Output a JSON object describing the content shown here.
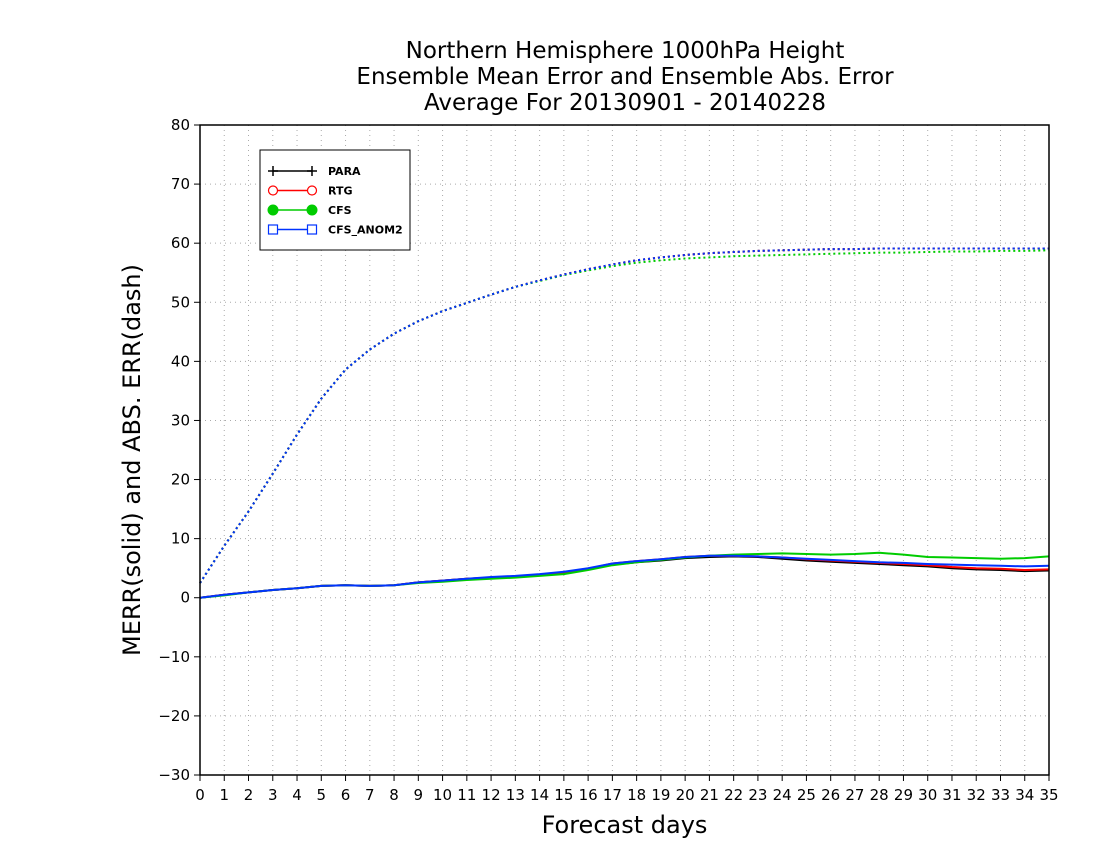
{
  "chart_data": {
    "type": "line",
    "title": [
      "Northern Hemisphere 1000hPa Height",
      "Ensemble Mean Error and Ensemble Abs. Error",
      "Average For 20130901 - 20140228"
    ],
    "xlabel": "Forecast days",
    "ylabel": "MERR(solid) and ABS. ERR(dash)",
    "xlim": [
      0,
      35
    ],
    "ylim": [
      -30,
      80
    ],
    "x_ticks": [
      0,
      1,
      2,
      3,
      4,
      5,
      6,
      7,
      8,
      9,
      10,
      11,
      12,
      13,
      14,
      15,
      16,
      17,
      18,
      19,
      20,
      21,
      22,
      23,
      24,
      25,
      26,
      27,
      28,
      29,
      30,
      31,
      32,
      33,
      34,
      35
    ],
    "y_ticks": [
      -30,
      -20,
      -10,
      0,
      10,
      20,
      30,
      40,
      50,
      60,
      70,
      80
    ],
    "grid": true,
    "legend_position": "top-left",
    "x": [
      0,
      1,
      2,
      3,
      4,
      5,
      6,
      7,
      8,
      9,
      10,
      11,
      12,
      13,
      14,
      15,
      16,
      17,
      18,
      19,
      20,
      21,
      22,
      23,
      24,
      25,
      26,
      27,
      28,
      29,
      30,
      31,
      32,
      33,
      34,
      35
    ],
    "series": [
      {
        "name": "PARA",
        "color": "#000000",
        "marker": "plus",
        "style": "solid",
        "values": [
          0.0,
          0.5,
          0.9,
          1.3,
          1.6,
          2.0,
          2.1,
          2.0,
          2.1,
          2.6,
          2.9,
          3.2,
          3.4,
          3.6,
          3.8,
          4.1,
          4.8,
          5.6,
          6.0,
          6.3,
          6.7,
          6.9,
          7.0,
          6.9,
          6.6,
          6.3,
          6.1,
          5.9,
          5.7,
          5.5,
          5.3,
          5.0,
          4.8,
          4.7,
          4.5,
          4.6
        ]
      },
      {
        "name": "RTG",
        "color": "#ff0000",
        "marker": "open-circle",
        "style": "solid",
        "values": [
          0.0,
          0.5,
          0.9,
          1.3,
          1.6,
          2.0,
          2.1,
          2.0,
          2.1,
          2.6,
          2.9,
          3.2,
          3.4,
          3.6,
          3.8,
          4.1,
          4.9,
          5.8,
          6.2,
          6.5,
          6.9,
          7.1,
          7.1,
          7.0,
          6.8,
          6.5,
          6.3,
          6.1,
          5.9,
          5.7,
          5.5,
          5.2,
          5.0,
          4.9,
          4.7,
          4.8
        ]
      },
      {
        "name": "CFS",
        "color": "#00cc00",
        "marker": "filled-circle",
        "style": "solid",
        "values": [
          0.0,
          0.4,
          0.9,
          1.3,
          1.6,
          2.0,
          2.1,
          2.0,
          2.1,
          2.5,
          2.7,
          3.0,
          3.2,
          3.4,
          3.7,
          4.0,
          4.7,
          5.5,
          6.0,
          6.4,
          6.8,
          7.1,
          7.3,
          7.4,
          7.5,
          7.4,
          7.3,
          7.4,
          7.6,
          7.3,
          6.9,
          6.8,
          6.7,
          6.6,
          6.7,
          7.0
        ]
      },
      {
        "name": "CFS_ANOM2",
        "color": "#0033ff",
        "marker": "open-square",
        "style": "solid",
        "values": [
          0.0,
          0.5,
          0.9,
          1.3,
          1.6,
          2.0,
          2.1,
          2.0,
          2.1,
          2.6,
          2.9,
          3.2,
          3.5,
          3.7,
          4.0,
          4.4,
          5.0,
          5.8,
          6.2,
          6.5,
          6.9,
          7.1,
          7.1,
          7.0,
          6.8,
          6.6,
          6.4,
          6.2,
          6.0,
          5.9,
          5.7,
          5.6,
          5.5,
          5.4,
          5.3,
          5.4
        ]
      },
      {
        "name": "PARA abs",
        "color": "#000000",
        "style": "dash",
        "values": [
          2.5,
          8.8,
          14.6,
          21.0,
          27.6,
          33.7,
          38.6,
          42.0,
          44.7,
          46.8,
          48.5,
          49.9,
          51.3,
          52.6,
          53.7,
          54.7,
          55.6,
          56.4,
          57.1,
          57.6,
          58.0,
          58.3,
          58.5,
          58.7,
          58.8,
          58.9,
          59.0,
          59.0,
          59.1,
          59.1,
          59.1,
          59.1,
          59.1,
          59.1,
          59.1,
          59.1
        ]
      },
      {
        "name": "RTG abs",
        "color": "#ff0000",
        "style": "dash",
        "values": [
          2.5,
          8.8,
          14.6,
          21.0,
          27.6,
          33.7,
          38.6,
          42.0,
          44.7,
          46.8,
          48.5,
          49.9,
          51.3,
          52.6,
          53.7,
          54.7,
          55.6,
          56.4,
          57.1,
          57.6,
          58.0,
          58.3,
          58.5,
          58.7,
          58.8,
          58.9,
          59.0,
          59.0,
          59.1,
          59.1,
          59.1,
          59.1,
          59.1,
          59.1,
          59.1,
          59.1
        ]
      },
      {
        "name": "CFS abs",
        "color": "#00cc00",
        "style": "dash",
        "values": [
          2.5,
          8.8,
          14.6,
          21.0,
          27.6,
          33.7,
          38.6,
          42.0,
          44.7,
          46.8,
          48.5,
          49.9,
          51.3,
          52.6,
          53.6,
          54.6,
          55.4,
          56.1,
          56.7,
          57.1,
          57.4,
          57.6,
          57.8,
          57.9,
          58.0,
          58.1,
          58.2,
          58.3,
          58.4,
          58.4,
          58.5,
          58.6,
          58.6,
          58.7,
          58.7,
          58.8
        ]
      },
      {
        "name": "CFS_ANOM2 abs",
        "color": "#0033ff",
        "style": "dash",
        "values": [
          2.5,
          8.8,
          14.6,
          21.0,
          27.6,
          33.7,
          38.6,
          42.0,
          44.7,
          46.8,
          48.5,
          49.9,
          51.3,
          52.6,
          53.7,
          54.7,
          55.6,
          56.4,
          57.1,
          57.6,
          58.0,
          58.3,
          58.5,
          58.7,
          58.8,
          58.9,
          59.0,
          59.0,
          59.1,
          59.1,
          59.1,
          59.1,
          59.1,
          59.1,
          59.1,
          59.1
        ]
      }
    ],
    "legend": [
      {
        "label": "PARA",
        "color": "#000000",
        "marker": "plus"
      },
      {
        "label": "RTG",
        "color": "#ff0000",
        "marker": "open-circle"
      },
      {
        "label": "CFS",
        "color": "#00cc00",
        "marker": "filled-circle"
      },
      {
        "label": "CFS_ANOM2",
        "color": "#0033ff",
        "marker": "open-square"
      }
    ]
  }
}
